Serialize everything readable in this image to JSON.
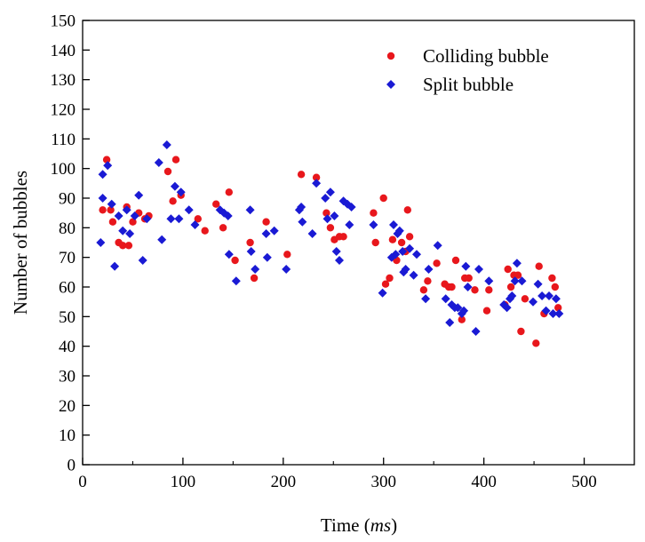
{
  "chart_data": {
    "type": "scatter",
    "title": "",
    "xlabel_main": "Time (",
    "xlabel_unit": "ms",
    "xlabel_close": ")",
    "ylabel": "Number of bubbles",
    "xlim": [
      0,
      550
    ],
    "ylim": [
      0,
      150
    ],
    "xticks": [
      "0",
      "100",
      "200",
      "300",
      "400",
      "500"
    ],
    "xtick_values": [
      0,
      100,
      200,
      300,
      400,
      500
    ],
    "yticks": [
      "0",
      "10",
      "20",
      "30",
      "40",
      "50",
      "60",
      "70",
      "80",
      "90",
      "100",
      "110",
      "120",
      "130",
      "140",
      "150"
    ],
    "ytick_values": [
      0,
      10,
      20,
      30,
      40,
      50,
      60,
      70,
      80,
      90,
      100,
      110,
      120,
      130,
      140,
      150
    ],
    "grid": false,
    "legend_position": "top-right",
    "series": [
      {
        "name": "Colliding bubble",
        "marker": "circle",
        "color": "#e8171c",
        "points": [
          [
            20,
            86
          ],
          [
            24,
            103
          ],
          [
            28,
            86
          ],
          [
            30,
            82
          ],
          [
            36,
            75
          ],
          [
            40,
            74
          ],
          [
            44,
            87
          ],
          [
            46,
            74
          ],
          [
            50,
            82
          ],
          [
            56,
            85
          ],
          [
            62,
            83
          ],
          [
            66,
            84
          ],
          [
            85,
            99
          ],
          [
            90,
            89
          ],
          [
            93,
            103
          ],
          [
            98,
            91
          ],
          [
            115,
            83
          ],
          [
            122,
            79
          ],
          [
            133,
            88
          ],
          [
            140,
            80
          ],
          [
            146,
            92
          ],
          [
            152,
            69
          ],
          [
            167,
            75
          ],
          [
            171,
            63
          ],
          [
            183,
            82
          ],
          [
            204,
            71
          ],
          [
            218,
            98
          ],
          [
            233,
            97
          ],
          [
            243,
            85
          ],
          [
            247,
            80
          ],
          [
            251,
            76
          ],
          [
            256,
            77
          ],
          [
            260,
            77
          ],
          [
            290,
            85
          ],
          [
            292,
            75
          ],
          [
            300,
            90
          ],
          [
            302,
            61
          ],
          [
            306,
            63
          ],
          [
            309,
            76
          ],
          [
            313,
            69
          ],
          [
            318,
            75
          ],
          [
            322,
            72
          ],
          [
            324,
            86
          ],
          [
            326,
            77
          ],
          [
            340,
            59
          ],
          [
            344,
            62
          ],
          [
            353,
            68
          ],
          [
            361,
            61
          ],
          [
            365,
            60
          ],
          [
            368,
            60
          ],
          [
            372,
            69
          ],
          [
            378,
            49
          ],
          [
            381,
            63
          ],
          [
            385,
            63
          ],
          [
            391,
            59
          ],
          [
            403,
            52
          ],
          [
            405,
            59
          ],
          [
            421,
            54
          ],
          [
            424,
            66
          ],
          [
            427,
            60
          ],
          [
            430,
            64
          ],
          [
            434,
            64
          ],
          [
            437,
            45
          ],
          [
            441,
            56
          ],
          [
            452,
            41
          ],
          [
            455,
            67
          ],
          [
            460,
            51
          ],
          [
            468,
            63
          ],
          [
            471,
            60
          ],
          [
            474,
            53
          ]
        ]
      },
      {
        "name": "Split bubble",
        "marker": "diamond",
        "color": "#1a1ad4",
        "points": [
          [
            18,
            75
          ],
          [
            20,
            90
          ],
          [
            20,
            98
          ],
          [
            25,
            101
          ],
          [
            29,
            88
          ],
          [
            32,
            67
          ],
          [
            36,
            84
          ],
          [
            40,
            79
          ],
          [
            44,
            86
          ],
          [
            47,
            78
          ],
          [
            52,
            84
          ],
          [
            56,
            91
          ],
          [
            60,
            69
          ],
          [
            64,
            83
          ],
          [
            76,
            102
          ],
          [
            79,
            76
          ],
          [
            84,
            108
          ],
          [
            88,
            83
          ],
          [
            92,
            94
          ],
          [
            96,
            83
          ],
          [
            98,
            92
          ],
          [
            106,
            86
          ],
          [
            112,
            81
          ],
          [
            137,
            86
          ],
          [
            141,
            85
          ],
          [
            145,
            84
          ],
          [
            146,
            71
          ],
          [
            153,
            62
          ],
          [
            167,
            86
          ],
          [
            168,
            72
          ],
          [
            172,
            66
          ],
          [
            183,
            78
          ],
          [
            184,
            70
          ],
          [
            191,
            79
          ],
          [
            203,
            66
          ],
          [
            216,
            86
          ],
          [
            218,
            87
          ],
          [
            219,
            82
          ],
          [
            229,
            78
          ],
          [
            233,
            95
          ],
          [
            242,
            90
          ],
          [
            244,
            83
          ],
          [
            247,
            92
          ],
          [
            251,
            84
          ],
          [
            253,
            72
          ],
          [
            256,
            69
          ],
          [
            260,
            89
          ],
          [
            264,
            88
          ],
          [
            266,
            81
          ],
          [
            268,
            87
          ],
          [
            290,
            81
          ],
          [
            299,
            58
          ],
          [
            308,
            70
          ],
          [
            310,
            81
          ],
          [
            312,
            71
          ],
          [
            314,
            78
          ],
          [
            316,
            79
          ],
          [
            319,
            72
          ],
          [
            320,
            65
          ],
          [
            322,
            66
          ],
          [
            326,
            73
          ],
          [
            330,
            64
          ],
          [
            333,
            71
          ],
          [
            342,
            56
          ],
          [
            345,
            66
          ],
          [
            354,
            74
          ],
          [
            362,
            56
          ],
          [
            366,
            48
          ],
          [
            368,
            54
          ],
          [
            371,
            53
          ],
          [
            374,
            53
          ],
          [
            378,
            51
          ],
          [
            380,
            52
          ],
          [
            382,
            67
          ],
          [
            384,
            60
          ],
          [
            392,
            45
          ],
          [
            395,
            66
          ],
          [
            405,
            62
          ],
          [
            420,
            54
          ],
          [
            423,
            53
          ],
          [
            426,
            56
          ],
          [
            428,
            57
          ],
          [
            431,
            62
          ],
          [
            433,
            68
          ],
          [
            438,
            62
          ],
          [
            449,
            55
          ],
          [
            454,
            61
          ],
          [
            458,
            57
          ],
          [
            462,
            52
          ],
          [
            465,
            57
          ],
          [
            469,
            51
          ],
          [
            472,
            56
          ],
          [
            475,
            51
          ]
        ]
      }
    ]
  }
}
